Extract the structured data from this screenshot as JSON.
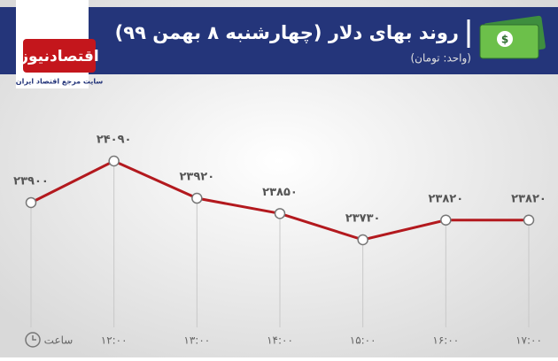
{
  "logo": {
    "name": "اقتصادنیوز",
    "tagline": "سایت مرجع اقتصاد ایران"
  },
  "chart_data": {
    "type": "line",
    "title": "روند بهای دلار (چهارشنبه ۸ بهمن ۹۹)",
    "subtitle": "(واحد: تومان)",
    "x_label": "ساعت",
    "categories": [
      null,
      "۱۲:۰۰",
      "۱۳:۰۰",
      "۱۴:۰۰",
      "۱۵:۰۰",
      "۱۶:۰۰",
      "۱۷:۰۰"
    ],
    "values": [
      23900,
      24090,
      23920,
      23850,
      23730,
      23820,
      23820
    ],
    "value_labels": [
      "۲۳۹۰۰",
      "۲۴۰۹۰",
      "۲۳۹۲۰",
      "۲۳۸۵۰",
      "۲۳۷۳۰",
      "۲۳۸۲۰",
      "۲۳۸۲۰"
    ],
    "color": "#b3191e"
  }
}
